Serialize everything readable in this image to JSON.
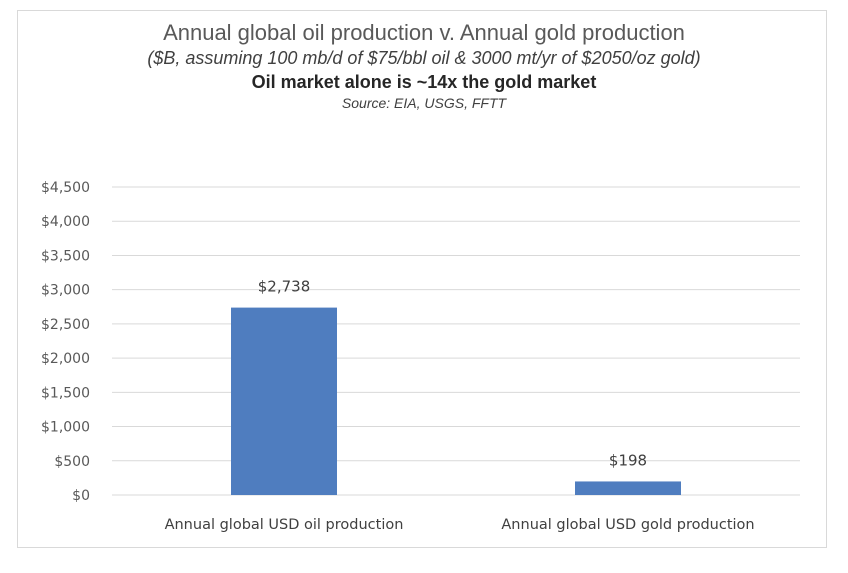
{
  "chart_data": {
    "type": "bar",
    "title": "Annual global oil production v. Annual gold production",
    "subtitle": "($B, assuming 100 mb/d of $75/bbl oil & 3000 mt/yr of $2050/oz gold)",
    "headline": "Oil market alone is ~14x the gold market",
    "source": "Source:  EIA, USGS, FFTT",
    "categories": [
      "Annual global USD oil production",
      "Annual global USD gold production"
    ],
    "values": [
      2738,
      198
    ],
    "data_labels": [
      "$2,738",
      "$198"
    ],
    "ylim": [
      0,
      4500
    ],
    "yticks": [
      0,
      500,
      1000,
      1500,
      2000,
      2500,
      3000,
      3500,
      4000,
      4500
    ],
    "ytick_labels": [
      "$0",
      "$500",
      "$1,000",
      "$1,500",
      "$2,000",
      "$2,500",
      "$3,000",
      "$3,500",
      "$4,000",
      "$4,500"
    ],
    "xlabel": "",
    "ylabel": "",
    "grid": true,
    "bar_color": "#4f7dbf",
    "grid_color": "#d9d9d9"
  }
}
